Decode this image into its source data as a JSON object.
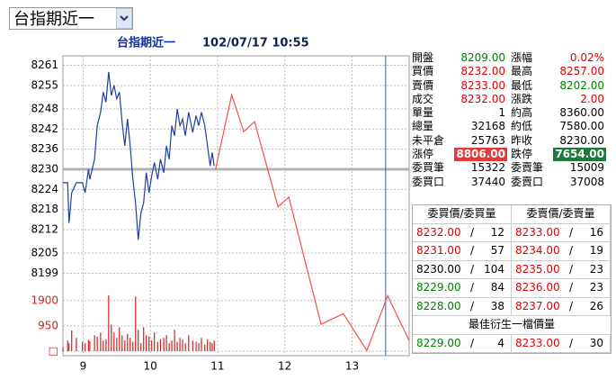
{
  "selector": {
    "label": "台指期近一"
  },
  "header": {
    "symbol": "台指期近一",
    "datetime": "102/07/17 10:55"
  },
  "chart_data": {
    "type": "line",
    "x": [
      8.7,
      8.77,
      8.79,
      8.83,
      8.9,
      8.99,
      9.03,
      9.08,
      9.1,
      9.17,
      9.21,
      9.26,
      9.3,
      9.34,
      9.38,
      9.42,
      9.46,
      9.5,
      9.54,
      9.58,
      9.62,
      9.66,
      9.7,
      9.74,
      9.78,
      9.82,
      9.86,
      9.9,
      9.94,
      9.98,
      10.02,
      10.06,
      10.11,
      10.15,
      10.2,
      10.24,
      10.28,
      10.32,
      10.36,
      10.4,
      10.44,
      10.48,
      10.52,
      10.57,
      10.63,
      10.68,
      10.72,
      10.76,
      10.81,
      10.85,
      10.89,
      10.92,
      10.95
    ],
    "series": [
      {
        "color": "#1f3f9f",
        "values": [
          8226,
          8226,
          8214,
          8223,
          8226,
          8226,
          8223,
          8230,
          8227,
          8233,
          8243,
          8247,
          8253,
          8250,
          8259,
          8252,
          8255,
          8251,
          8253,
          8244,
          8237,
          8245,
          8237,
          8227,
          8220,
          8209,
          8217,
          8220,
          8229,
          8223,
          8228,
          8232,
          8227,
          8233,
          8229,
          8237,
          8233,
          8243,
          8240,
          8248,
          8243,
          8245,
          8240,
          8247,
          8241,
          8246,
          8243,
          8247,
          8243,
          8237,
          8231,
          8235,
          8231
        ]
      },
      {
        "color": "#f05050",
        "x": [
          10.97,
          11.21,
          11.39,
          11.55,
          11.9,
          12.06,
          12.54,
          12.87,
          13.22,
          13.53,
          13.85
        ],
        "values": [
          8230,
          8252.2,
          8241.2,
          8244.2,
          8218.8,
          8221.7,
          8183.8,
          8187,
          8176,
          8192.3,
          8179
        ]
      },
      {
        "type": "bar",
        "axis": "y2",
        "color": "#d02020",
        "values": [
          150,
          400,
          300,
          780,
          500,
          350,
          300,
          420,
          380,
          600,
          550,
          700,
          400,
          450,
          2100,
          1000,
          700,
          500,
          900,
          600,
          400,
          650,
          500,
          350,
          2050,
          800,
          300,
          900,
          600,
          550,
          400,
          700,
          350,
          450,
          500,
          600,
          300,
          400,
          800,
          350,
          500,
          450,
          300,
          600,
          400,
          350,
          300,
          500,
          250,
          450,
          350,
          300,
          400
        ]
      }
    ],
    "xlim": [
      8.7,
      13.85
    ],
    "xticks": [
      9,
      10,
      11,
      12,
      13
    ],
    "ylim": [
      8175,
      8263
    ],
    "yticks": [
      8261,
      8255,
      8248,
      8242,
      8236,
      8230,
      8224,
      8218,
      8212,
      8205,
      8199
    ],
    "y2lim": [
      0,
      2400
    ],
    "y2ticks": [
      {
        "value": 0,
        "label": "□"
      },
      950,
      1900
    ],
    "reference": 8230,
    "marker_x": 13.5,
    "grid": true
  },
  "quote": {
    "rows": [
      [
        {
          "label": "開盤",
          "value": "8209.00",
          "color": "#008000"
        },
        {
          "label": "漲幅",
          "value": "0.02%",
          "color": "#e00000"
        }
      ],
      [
        {
          "label": "買價",
          "value": "8232.00",
          "color": "#e00000"
        },
        {
          "label": "最高",
          "value": "8257.00",
          "color": "#e00000"
        }
      ],
      [
        {
          "label": "賣價",
          "value": "8233.00",
          "color": "#e00000"
        },
        {
          "label": "最低",
          "value": "8202.00",
          "color": "#008000"
        }
      ],
      [
        {
          "label": "成交",
          "value": "8232.00",
          "color": "#e00000"
        },
        {
          "label": "漲跌",
          "value": "2.00",
          "color": "#e00000"
        }
      ],
      [
        {
          "label": "單量",
          "value": "1",
          "color": "#000000"
        },
        {
          "label": "約高",
          "value": "8360.00",
          "color": "#000000"
        }
      ],
      [
        {
          "label": "總量",
          "value": "32168",
          "color": "#000000"
        },
        {
          "label": "約低",
          "value": "7580.00",
          "color": "#000000"
        }
      ],
      [
        {
          "label": "未平倉",
          "value": "25763",
          "color": "#000000"
        },
        {
          "label": "昨收",
          "value": "8230.00",
          "color": "#000000"
        }
      ],
      [
        {
          "label": "漲停",
          "value": "8806.00",
          "color": "#ffffff",
          "bg": "#e03a3a"
        },
        {
          "label": "跌停",
          "value": "7654.00",
          "color": "#ffffff",
          "bg": "#1e7a3a"
        }
      ],
      [
        {
          "label": "委買筆",
          "value": "15322",
          "color": "#000000"
        },
        {
          "label": "委賣筆",
          "value": "15009",
          "color": "#000000"
        }
      ],
      [
        {
          "label": "委買口",
          "value": "37440",
          "color": "#000000"
        },
        {
          "label": "委賣口",
          "value": "37008",
          "color": "#000000"
        }
      ]
    ]
  },
  "order_book": {
    "headers": [
      "委買價/委買量",
      "委賣價/委賣量"
    ],
    "separator": "/",
    "rows": [
      [
        {
          "price": "8232.00",
          "qty": "12",
          "color": "#e00000"
        },
        {
          "price": "8233.00",
          "qty": "16",
          "color": "#e00000"
        }
      ],
      [
        {
          "price": "8231.00",
          "qty": "57",
          "color": "#e00000"
        },
        {
          "price": "8234.00",
          "qty": "19",
          "color": "#e00000"
        }
      ],
      [
        {
          "price": "8230.00",
          "qty": "104",
          "color": "#000000"
        },
        {
          "price": "8235.00",
          "qty": "23",
          "color": "#e00000"
        }
      ],
      [
        {
          "price": "8229.00",
          "qty": "84",
          "color": "#008000"
        },
        {
          "price": "8236.00",
          "qty": "23",
          "color": "#e00000"
        }
      ],
      [
        {
          "price": "8228.00",
          "qty": "38",
          "color": "#008000"
        },
        {
          "price": "8237.00",
          "qty": "26",
          "color": "#e00000"
        }
      ]
    ],
    "derived_title": "最佳衍生一檔價量",
    "derived": [
      {
        "price": "8229.00",
        "qty": "4",
        "color": "#008000"
      },
      {
        "price": "8233.00",
        "qty": "30",
        "color": "#e00000"
      }
    ]
  }
}
